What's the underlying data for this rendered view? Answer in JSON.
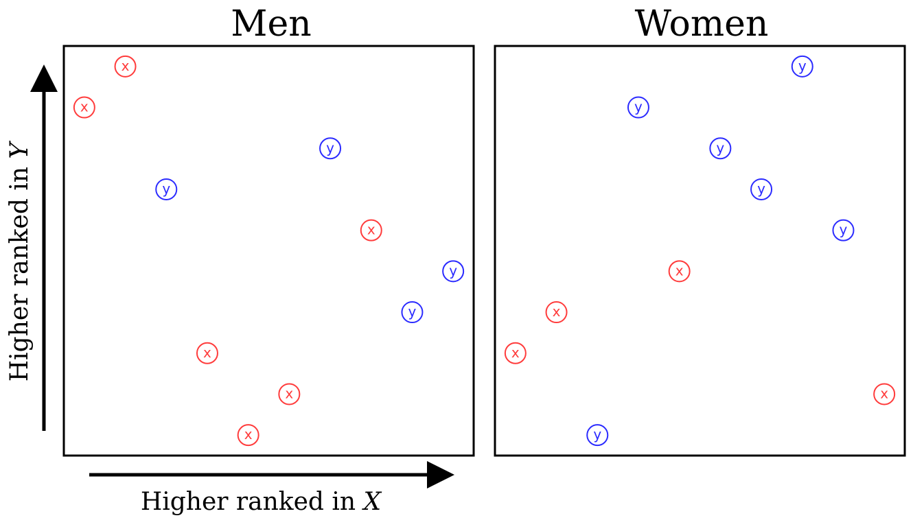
{
  "chart_data": [
    {
      "type": "scatter",
      "title": "Men",
      "xlabel": "Higher ranked in",
      "xlabel_var": "X",
      "ylabel": "Higher ranked in",
      "ylabel_var": "Y",
      "xlim": [
        0.5,
        10.5
      ],
      "ylim": [
        0.5,
        10.5
      ],
      "grid": false,
      "series": [
        {
          "name": "x",
          "color": "#ff3b3b",
          "points": [
            {
              "x": 1,
              "y": 9
            },
            {
              "x": 2,
              "y": 10
            },
            {
              "x": 4,
              "y": 3
            },
            {
              "x": 5,
              "y": 1
            },
            {
              "x": 6,
              "y": 2
            },
            {
              "x": 8,
              "y": 6
            }
          ]
        },
        {
          "name": "y",
          "color": "#2b2bff",
          "points": [
            {
              "x": 3,
              "y": 7
            },
            {
              "x": 7,
              "y": 8
            },
            {
              "x": 9,
              "y": 4
            },
            {
              "x": 10,
              "y": 5
            }
          ]
        }
      ]
    },
    {
      "type": "scatter",
      "title": "Women",
      "xlim": [
        0.5,
        10.5
      ],
      "ylim": [
        0.5,
        10.5
      ],
      "grid": false,
      "series": [
        {
          "name": "x",
          "color": "#ff3b3b",
          "points": [
            {
              "x": 1,
              "y": 3
            },
            {
              "x": 2,
              "y": 4
            },
            {
              "x": 5,
              "y": 5
            },
            {
              "x": 10,
              "y": 2
            }
          ]
        },
        {
          "name": "y",
          "color": "#2b2bff",
          "points": [
            {
              "x": 3,
              "y": 1
            },
            {
              "x": 4,
              "y": 9
            },
            {
              "x": 6,
              "y": 8
            },
            {
              "x": 7,
              "y": 7
            },
            {
              "x": 8,
              "y": 10
            },
            {
              "x": 9,
              "y": 6
            }
          ]
        }
      ]
    }
  ]
}
